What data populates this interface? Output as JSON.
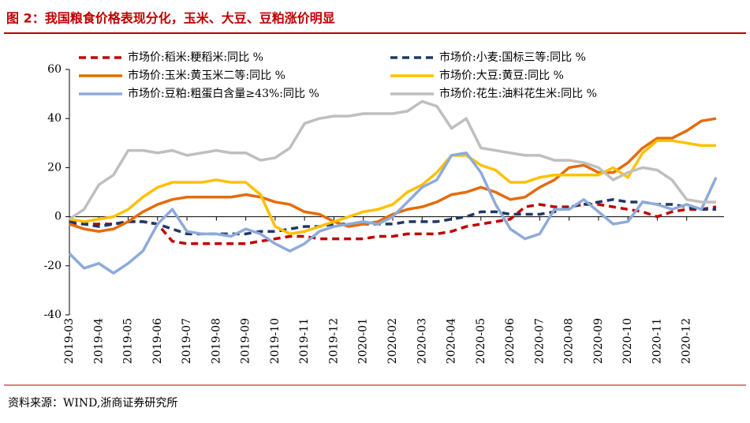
{
  "chart_data": {
    "type": "line",
    "title": "图 2：我国粮食价格表现分化，玉米、大豆、豆粕涨价明显",
    "source": "资料来源：WIND,浙商证券研究所",
    "categories": [
      "2019-03",
      null,
      "2019-04",
      null,
      "2019-05",
      null,
      "2019-06",
      null,
      "2019-07",
      null,
      "2019-08",
      null,
      "2019-09",
      null,
      "2019-10",
      null,
      "2019-11",
      null,
      "2019-12",
      null,
      "2020-01",
      null,
      "2020-02",
      null,
      "2020-03",
      null,
      "2020-04",
      null,
      "2020-05",
      null,
      "2020-06",
      null,
      "2020-07",
      null,
      "2020-08",
      null,
      "2020-09",
      null,
      "2020-10",
      null,
      "2020-11",
      null,
      "2020-12",
      null,
      null
    ],
    "ylim": [
      -40,
      60
    ],
    "yticks": [
      -40,
      -20,
      0,
      20,
      40,
      60
    ],
    "series": [
      {
        "name": "市场价:稻米:粳稻米:同比 %",
        "color": "#c00000",
        "style": "dashed",
        "values": [
          -3,
          -3,
          -3,
          -3,
          -2,
          -2,
          -3,
          -10,
          -11,
          -11,
          -11,
          -11,
          -11,
          -10,
          -9,
          -8,
          -8,
          -9,
          -9,
          -9,
          -9,
          -8,
          -8,
          -7,
          -7,
          -7,
          -6,
          -4,
          -3,
          -2,
          -1,
          4,
          5,
          4,
          4,
          5,
          5,
          4,
          3,
          2,
          0,
          2,
          3,
          3,
          4
        ]
      },
      {
        "name": "市场价:小麦:国标三等:同比 %",
        "color": "#1f3864",
        "style": "dashed",
        "values": [
          -2,
          -3,
          -4,
          -3,
          -2,
          -2,
          -3,
          -5,
          -7,
          -7,
          -7,
          -7,
          -7,
          -6,
          -6,
          -5,
          -4,
          -4,
          -3,
          -3,
          -3,
          -3,
          -3,
          -2,
          -2,
          -2,
          -1,
          0,
          2,
          2,
          1,
          1,
          1,
          2,
          4,
          5,
          6,
          7,
          6,
          6,
          5,
          5,
          4,
          3,
          3
        ]
      },
      {
        "name": "市场价:玉米:黄玉米二等:同比 %",
        "color": "#e46c0a",
        "style": "solid",
        "values": [
          -3,
          -5,
          -6,
          -5,
          -2,
          2,
          5,
          7,
          8,
          8,
          8,
          8,
          9,
          8,
          6,
          5,
          2,
          1,
          -2,
          -4,
          -3,
          -2,
          1,
          3,
          4,
          6,
          9,
          10,
          12,
          10,
          7,
          8,
          12,
          15,
          20,
          21,
          18,
          18,
          22,
          28,
          32,
          32,
          35,
          39,
          40
        ]
      },
      {
        "name": "市场价:大豆:黄豆:同比 %",
        "color": "#ffc000",
        "style": "solid",
        "values": [
          -1,
          -2,
          -1,
          0,
          3,
          8,
          12,
          14,
          14,
          14,
          15,
          14,
          14,
          9,
          -4,
          -7,
          -6,
          -4,
          -2,
          0,
          2,
          3,
          5,
          10,
          13,
          18,
          25,
          25,
          21,
          19,
          14,
          14,
          16,
          17,
          17,
          17,
          17,
          20,
          16,
          26,
          31,
          31,
          30,
          29,
          29
        ]
      },
      {
        "name": "市场价:豆粕:粗蛋白含量≥43%:同比 %",
        "color": "#8eaadb",
        "style": "solid",
        "values": [
          -15,
          -21,
          -19,
          -23,
          -19,
          -14,
          -3,
          3,
          -6,
          -7,
          -7,
          -8,
          -5,
          -7,
          -11,
          -14,
          -11,
          -6,
          -4,
          -3,
          -2,
          -3,
          0,
          6,
          12,
          15,
          25,
          26,
          18,
          5,
          -5,
          -9,
          -7,
          3,
          3,
          7,
          2,
          -3,
          -2,
          6,
          5,
          3,
          5,
          3,
          16
        ]
      },
      {
        "name": "市场价:花生:油料花生米:同比 %",
        "color": "#bfbfbf",
        "style": "solid",
        "values": [
          -1,
          3,
          13,
          17,
          27,
          27,
          26,
          27,
          25,
          26,
          27,
          26,
          26,
          23,
          24,
          28,
          38,
          40,
          41,
          41,
          42,
          42,
          42,
          43,
          47,
          45,
          36,
          40,
          28,
          27,
          26,
          25,
          25,
          23,
          23,
          22,
          20,
          15,
          18,
          20,
          19,
          15,
          7,
          6,
          6
        ]
      }
    ]
  }
}
